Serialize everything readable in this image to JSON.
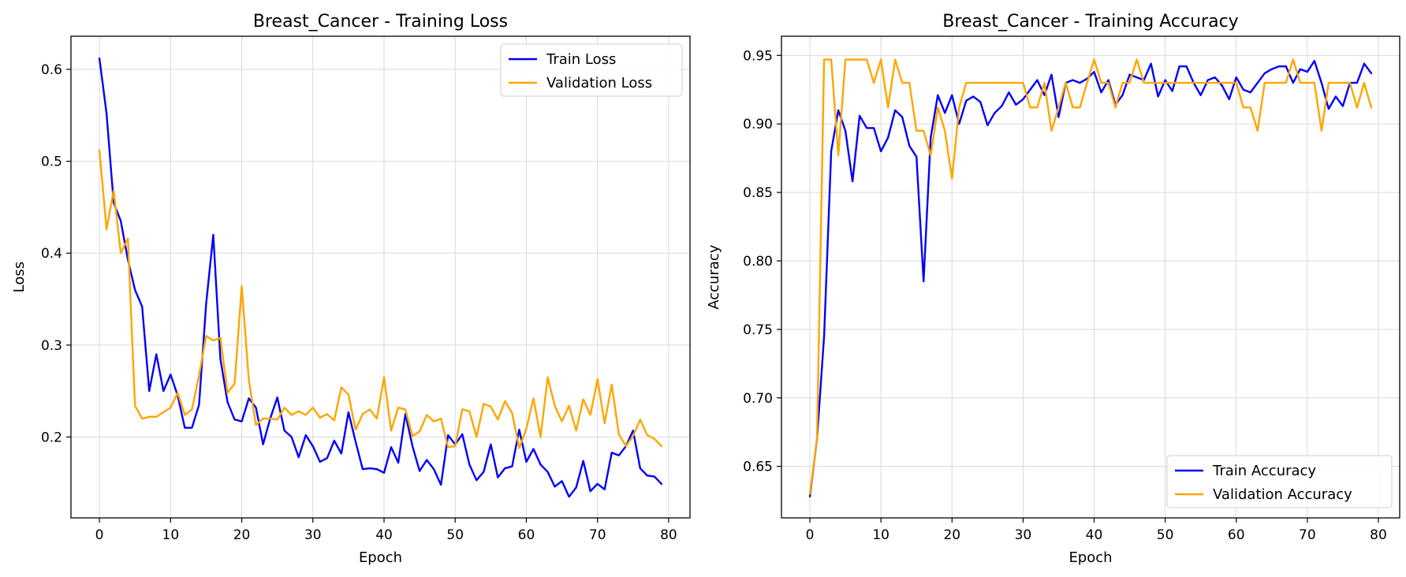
{
  "chart_data": [
    {
      "type": "line",
      "title": "Breast_Cancer - Training Loss",
      "xlabel": "Epoch",
      "ylabel": "Loss",
      "xlim": [
        -4,
        83
      ],
      "ylim": [
        0.112,
        0.636
      ],
      "xticks": [
        0,
        10,
        20,
        30,
        40,
        50,
        60,
        70,
        80
      ],
      "yticks": [
        0.2,
        0.3,
        0.4,
        0.5,
        0.6
      ],
      "ytick_labels": [
        "0.2",
        "0.3",
        "0.4",
        "0.5",
        "0.6"
      ],
      "grid": true,
      "legend_position": "top-right",
      "x": [
        0,
        1,
        2,
        3,
        4,
        5,
        6,
        7,
        8,
        9,
        10,
        11,
        12,
        13,
        14,
        15,
        16,
        17,
        18,
        19,
        20,
        21,
        22,
        23,
        24,
        25,
        26,
        27,
        28,
        29,
        30,
        31,
        32,
        33,
        34,
        35,
        36,
        37,
        38,
        39,
        40,
        41,
        42,
        43,
        44,
        45,
        46,
        47,
        48,
        49,
        50,
        51,
        52,
        53,
        54,
        55,
        56,
        57,
        58,
        59,
        60,
        61,
        62,
        63,
        64,
        65,
        66,
        67,
        68,
        69,
        70,
        71,
        72,
        73,
        74,
        75,
        76,
        77,
        78,
        79
      ],
      "series": [
        {
          "name": "Train Loss",
          "color": "#0000ff",
          "values": [
            0.612,
            0.552,
            0.455,
            0.435,
            0.393,
            0.36,
            0.342,
            0.25,
            0.29,
            0.25,
            0.268,
            0.245,
            0.21,
            0.21,
            0.235,
            0.345,
            0.42,
            0.285,
            0.238,
            0.219,
            0.217,
            0.242,
            0.232,
            0.192,
            0.22,
            0.243,
            0.207,
            0.2,
            0.178,
            0.202,
            0.19,
            0.173,
            0.177,
            0.196,
            0.182,
            0.227,
            0.195,
            0.165,
            0.166,
            0.165,
            0.161,
            0.189,
            0.172,
            0.225,
            0.19,
            0.163,
            0.175,
            0.165,
            0.148,
            0.202,
            0.192,
            0.203,
            0.17,
            0.153,
            0.162,
            0.192,
            0.156,
            0.166,
            0.168,
            0.208,
            0.173,
            0.187,
            0.17,
            0.162,
            0.146,
            0.152,
            0.135,
            0.145,
            0.174,
            0.141,
            0.149,
            0.143,
            0.183,
            0.18,
            0.19,
            0.207,
            0.166,
            0.158,
            0.157,
            0.149
          ]
        },
        {
          "name": "Validation Loss",
          "color": "#ffa500",
          "values": [
            0.512,
            0.426,
            0.468,
            0.4,
            0.416,
            0.234,
            0.22,
            0.222,
            0.222,
            0.227,
            0.232,
            0.248,
            0.224,
            0.23,
            0.267,
            0.31,
            0.305,
            0.308,
            0.248,
            0.258,
            0.364,
            0.262,
            0.213,
            0.22,
            0.22,
            0.219,
            0.232,
            0.224,
            0.228,
            0.224,
            0.232,
            0.221,
            0.225,
            0.218,
            0.254,
            0.246,
            0.208,
            0.225,
            0.23,
            0.22,
            0.265,
            0.207,
            0.232,
            0.23,
            0.201,
            0.206,
            0.224,
            0.217,
            0.22,
            0.189,
            0.19,
            0.23,
            0.228,
            0.2,
            0.236,
            0.233,
            0.219,
            0.239,
            0.226,
            0.188,
            0.209,
            0.242,
            0.2,
            0.265,
            0.234,
            0.217,
            0.234,
            0.207,
            0.241,
            0.224,
            0.263,
            0.215,
            0.257,
            0.203,
            0.19,
            0.201,
            0.219,
            0.202,
            0.198,
            0.19
          ]
        }
      ]
    },
    {
      "type": "line",
      "title": "Breast_Cancer - Training Accuracy",
      "xlabel": "Epoch",
      "ylabel": "Accuracy",
      "xlim": [
        -4,
        83
      ],
      "ylim": [
        0.6124,
        0.964
      ],
      "xticks": [
        0,
        10,
        20,
        30,
        40,
        50,
        60,
        70,
        80
      ],
      "yticks": [
        0.65,
        0.7,
        0.75,
        0.8,
        0.85,
        0.9,
        0.95
      ],
      "ytick_labels": [
        "0.65",
        "0.70",
        "0.75",
        "0.80",
        "0.85",
        "0.90",
        "0.95"
      ],
      "grid": true,
      "legend_position": "bottom-right",
      "x": [
        0,
        1,
        2,
        3,
        4,
        5,
        6,
        7,
        8,
        9,
        10,
        11,
        12,
        13,
        14,
        15,
        16,
        17,
        18,
        19,
        20,
        21,
        22,
        23,
        24,
        25,
        26,
        27,
        28,
        29,
        30,
        31,
        32,
        33,
        34,
        35,
        36,
        37,
        38,
        39,
        40,
        41,
        42,
        43,
        44,
        45,
        46,
        47,
        48,
        49,
        50,
        51,
        52,
        53,
        54,
        55,
        56,
        57,
        58,
        59,
        60,
        61,
        62,
        63,
        64,
        65,
        66,
        67,
        68,
        69,
        70,
        71,
        72,
        73,
        74,
        75,
        76,
        77,
        78,
        79
      ],
      "series": [
        {
          "name": "Train Accuracy",
          "color": "#0000ff",
          "values": [
            0.628,
            0.67,
            0.745,
            0.88,
            0.91,
            0.895,
            0.858,
            0.906,
            0.897,
            0.897,
            0.88,
            0.89,
            0.91,
            0.905,
            0.884,
            0.876,
            0.785,
            0.89,
            0.921,
            0.908,
            0.921,
            0.9,
            0.917,
            0.92,
            0.916,
            0.899,
            0.908,
            0.913,
            0.923,
            0.914,
            0.918,
            0.925,
            0.932,
            0.921,
            0.936,
            0.905,
            0.93,
            0.932,
            0.93,
            0.933,
            0.938,
            0.923,
            0.932,
            0.914,
            0.921,
            0.936,
            0.934,
            0.932,
            0.944,
            0.92,
            0.932,
            0.924,
            0.942,
            0.942,
            0.93,
            0.921,
            0.932,
            0.934,
            0.928,
            0.918,
            0.934,
            0.925,
            0.923,
            0.93,
            0.937,
            0.94,
            0.942,
            0.942,
            0.93,
            0.94,
            0.938,
            0.946,
            0.93,
            0.911,
            0.92,
            0.913,
            0.93,
            0.93,
            0.944,
            0.937
          ]
        },
        {
          "name": "Validation Accuracy",
          "color": "#ffa500",
          "values": [
            0.63,
            0.67,
            0.947,
            0.947,
            0.877,
            0.947,
            0.947,
            0.947,
            0.947,
            0.93,
            0.947,
            0.912,
            0.947,
            0.93,
            0.93,
            0.895,
            0.895,
            0.877,
            0.912,
            0.895,
            0.86,
            0.912,
            0.93,
            0.93,
            0.93,
            0.93,
            0.93,
            0.93,
            0.93,
            0.93,
            0.93,
            0.912,
            0.912,
            0.93,
            0.895,
            0.912,
            0.93,
            0.912,
            0.912,
            0.93,
            0.947,
            0.93,
            0.93,
            0.912,
            0.93,
            0.93,
            0.947,
            0.93,
            0.93,
            0.93,
            0.93,
            0.93,
            0.93,
            0.93,
            0.93,
            0.93,
            0.93,
            0.93,
            0.93,
            0.93,
            0.93,
            0.912,
            0.912,
            0.895,
            0.93,
            0.93,
            0.93,
            0.93,
            0.947,
            0.93,
            0.93,
            0.93,
            0.895,
            0.93,
            0.93,
            0.93,
            0.93,
            0.912,
            0.93,
            0.912
          ]
        }
      ]
    }
  ]
}
